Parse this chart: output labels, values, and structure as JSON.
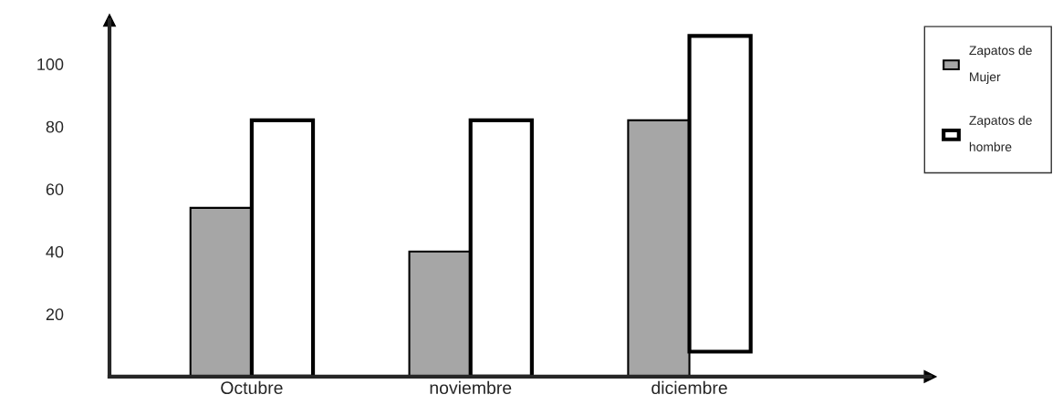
{
  "chart_data": {
    "type": "bar",
    "categories": [
      "Octubre",
      "noviembre",
      "diciembre"
    ],
    "series": [
      {
        "name": "Zapatos de\nMujer",
        "color": "#a6a6a6",
        "values": [
          54,
          40,
          82
        ]
      },
      {
        "name": "Zapatos de\nhombre",
        "color": "#ffffff",
        "values": [
          82,
          82,
          101
        ],
        "base": [
          0,
          0,
          8
        ]
      }
    ],
    "ylim": [
      0,
      114
    ],
    "yticks": [
      20,
      40,
      60,
      80,
      100
    ],
    "grid": false,
    "legend": "top right"
  }
}
